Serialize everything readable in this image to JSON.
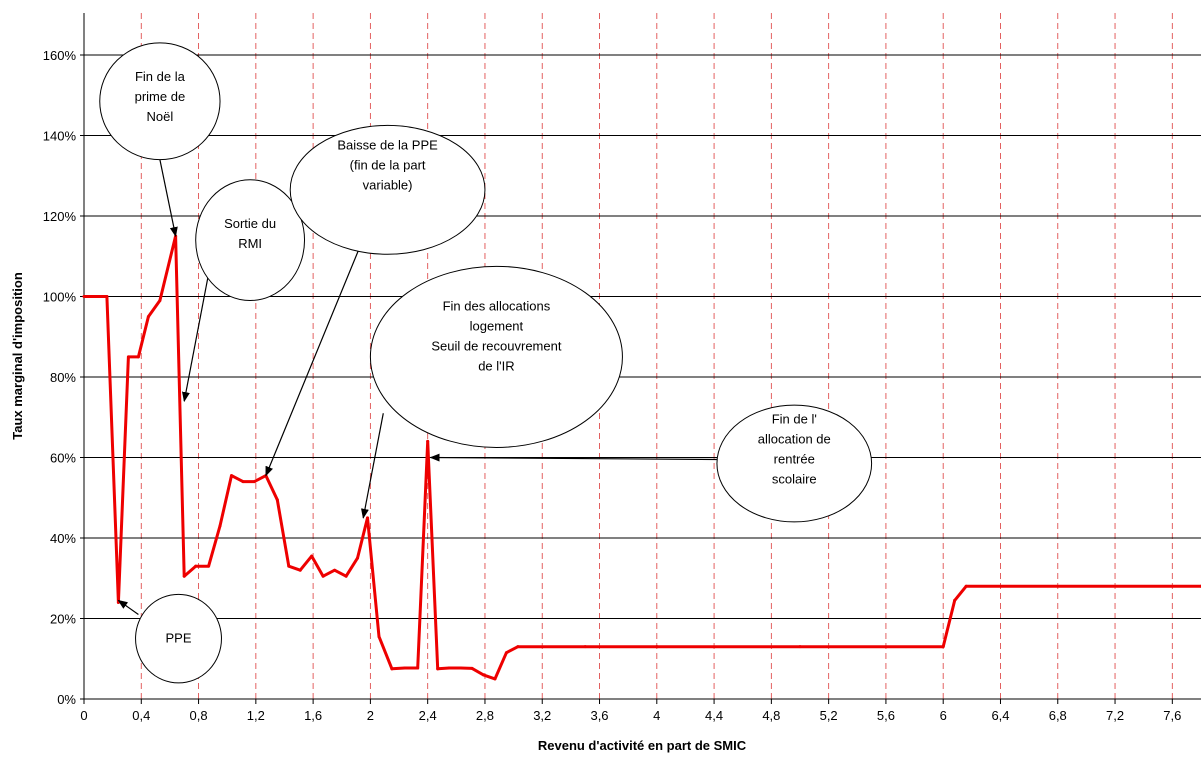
{
  "chart_data": {
    "type": "line",
    "xlabel": "Revenu d'activité en part de SMIC",
    "ylabel": "Taux marginal d'imposition",
    "xlim": [
      0,
      7.8
    ],
    "ylim": [
      0,
      170
    ],
    "y_unit": "%",
    "x_ticks": [
      0,
      0.4,
      0.8,
      1.2,
      1.6,
      2,
      2.4,
      2.8,
      3.2,
      3.6,
      4,
      4.4,
      4.8,
      5.2,
      5.6,
      6,
      6.4,
      6.8,
      7.2,
      7.6
    ],
    "x_tick_labels": [
      "0",
      "0,4",
      "0,8",
      "1,2",
      "1,6",
      "2",
      "2,4",
      "2,8",
      "3,2",
      "3,6",
      "4",
      "4,4",
      "4,8",
      "5,2",
      "5,6",
      "6",
      "6,4",
      "6,8",
      "7,2",
      "7,6"
    ],
    "y_ticks": [
      0,
      20,
      40,
      60,
      80,
      100,
      120,
      140,
      160
    ],
    "y_tick_labels": [
      "0%",
      "20%",
      "40%",
      "60%",
      "80%",
      "100%",
      "120%",
      "140%",
      "160%"
    ],
    "grid": {
      "horizontal": "solid black",
      "vertical": "dashed red at x ticks"
    },
    "colors": {
      "series": "#ee0000",
      "h_grid": "#000000",
      "v_grid": "#e05050"
    },
    "series": [
      {
        "points": [
          [
            0,
            100
          ],
          [
            0.16,
            100
          ],
          [
            0.24,
            24
          ],
          [
            0.31,
            85
          ],
          [
            0.38,
            85
          ],
          [
            0.45,
            95
          ],
          [
            0.53,
            99
          ],
          [
            0.64,
            115
          ],
          [
            0.7,
            30.5
          ],
          [
            0.78,
            33
          ],
          [
            0.87,
            33
          ],
          [
            0.95,
            43
          ],
          [
            1.03,
            55.5
          ],
          [
            1.11,
            54
          ],
          [
            1.19,
            54
          ],
          [
            1.27,
            55.5
          ],
          [
            1.35,
            49.5
          ],
          [
            1.43,
            33
          ],
          [
            1.51,
            32
          ],
          [
            1.59,
            35.5
          ],
          [
            1.67,
            30.5
          ],
          [
            1.75,
            32
          ],
          [
            1.83,
            30.5
          ],
          [
            1.91,
            35
          ],
          [
            1.98,
            45
          ],
          [
            2.06,
            15.5
          ],
          [
            2.15,
            7.5
          ],
          [
            2.24,
            7.7
          ],
          [
            2.33,
            7.7
          ],
          [
            2.4,
            64
          ],
          [
            2.47,
            7.5
          ],
          [
            2.55,
            7.7
          ],
          [
            2.63,
            7.7
          ],
          [
            2.71,
            7.6
          ],
          [
            2.79,
            6
          ],
          [
            2.87,
            5
          ],
          [
            2.95,
            11.5
          ],
          [
            3.03,
            13
          ],
          [
            3.5,
            13
          ],
          [
            4.0,
            13
          ],
          [
            5.0,
            13
          ],
          [
            6.0,
            13
          ],
          [
            6.08,
            24.5
          ],
          [
            6.16,
            28
          ],
          [
            7.8,
            28
          ]
        ]
      }
    ],
    "annotations": [
      {
        "id": "noel",
        "lines": [
          "Fin de la",
          "prime de",
          "Noël"
        ],
        "ellipse": {
          "cx": 0.53,
          "cy": 148.5,
          "rx": 0.42,
          "ry": 14.5
        },
        "text_y": 153.5,
        "arrow_from": [
          0.53,
          134
        ],
        "arrow_to": [
          0.64,
          115
        ]
      },
      {
        "id": "rmi",
        "lines": [
          "Sortie du",
          "RMI"
        ],
        "ellipse": {
          "cx": 1.16,
          "cy": 114,
          "rx": 0.38,
          "ry": 15
        },
        "text_y": 117,
        "arrow_from": [
          0.88,
          107.5
        ],
        "arrow_to": [
          0.7,
          74
        ]
      },
      {
        "id": "ppe_part",
        "lines": [
          "Baisse de la PPE",
          "(fin de la part",
          "variable)"
        ],
        "ellipse": {
          "cx": 2.12,
          "cy": 126.5,
          "rx": 0.68,
          "ry": 16
        },
        "text_y": 136.5,
        "arrow_from": [
          1.94,
          113.5
        ],
        "arrow_to": [
          1.27,
          55.5
        ]
      },
      {
        "id": "logement",
        "lines": [
          "Fin des allocations",
          "logement",
          "Seuil de recouvrement",
          "de l'IR"
        ],
        "ellipse": {
          "cx": 2.88,
          "cy": 85,
          "rx": 0.88,
          "ry": 22.5
        },
        "text_y": 96.5,
        "arrow_from": [
          2.09,
          71
        ],
        "arrow_to": [
          1.95,
          45
        ]
      },
      {
        "id": "rentree",
        "lines": [
          "Fin de l'",
          "allocation de",
          "rentrée",
          "scolaire"
        ],
        "ellipse": {
          "cx": 4.96,
          "cy": 58.5,
          "rx": 0.54,
          "ry": 14.5
        },
        "text_y": 68.5,
        "arrow_from": [
          4.42,
          59.5
        ],
        "arrow_to": [
          2.42,
          60
        ]
      },
      {
        "id": "ppe",
        "lines": [
          "PPE"
        ],
        "ellipse": {
          "cx": 0.66,
          "cy": 15,
          "rx": 0.3,
          "ry": 11
        },
        "text_y": 14,
        "arrow_from": [
          0.38,
          21
        ],
        "arrow_to": [
          0.24,
          24.5
        ]
      }
    ]
  }
}
